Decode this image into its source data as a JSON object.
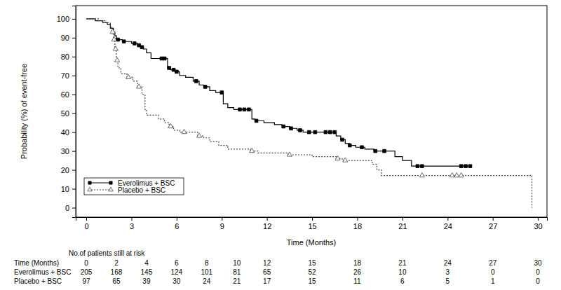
{
  "chart_data": {
    "type": "step",
    "x_label": "Time (Months)",
    "y_label": "Probability (%) of event-free",
    "xlim": [
      -0.7,
      30.6
    ],
    "xticks": [
      0,
      3,
      6,
      9,
      12,
      15,
      18,
      21,
      24,
      27,
      30
    ],
    "ylim": [
      -5,
      107
    ],
    "yticks": [
      0,
      10,
      20,
      30,
      40,
      50,
      60,
      70,
      80,
      90,
      100
    ],
    "grid": false,
    "legend": "lower left",
    "series": [
      {
        "name": "Everolimus + BSC",
        "color": "#000000",
        "line_style": "solid",
        "marker": "square",
        "x": [
          0,
          0.6,
          1.1,
          1.4,
          1.6,
          1.8,
          1.9,
          2.0,
          2.4,
          3.0,
          3.4,
          3.6,
          3.8,
          4.0,
          4.3,
          5.4,
          5.6,
          5.9,
          6.2,
          6.6,
          7.1,
          7.5,
          7.8,
          8.2,
          8.6,
          9.1,
          9.4,
          9.8,
          11.0,
          11.2,
          11.8,
          12.5,
          13.0,
          13.5,
          14.0,
          14.4,
          16.6,
          16.9,
          17.2,
          17.5,
          17.9,
          18.5,
          19.1,
          20.5,
          21.0,
          21.6,
          25.5
        ],
        "values": [
          100,
          99,
          98,
          97,
          95,
          93,
          91,
          89,
          88,
          87,
          86,
          85,
          84,
          82,
          79,
          74,
          73,
          72,
          70,
          69,
          67,
          65,
          64,
          62,
          61,
          55,
          53,
          52,
          47,
          46,
          45,
          44,
          43,
          42,
          41,
          40,
          38,
          36,
          34,
          33,
          32,
          31,
          30,
          27,
          25,
          22,
          22
        ],
        "censor_x": [
          2.1,
          2.5,
          3.2,
          3.5,
          3.7,
          5.0,
          5.2,
          5.5,
          5.8,
          6.0,
          7.3,
          7.9,
          9.0,
          10.2,
          10.5,
          10.8,
          11.3,
          13.1,
          13.6,
          14.2,
          14.8,
          15.2,
          15.9,
          16.2,
          16.5,
          17.0,
          17.5,
          18.3,
          19.2,
          19.8,
          22.0,
          22.3,
          24.9,
          25.2,
          25.5
        ],
        "censor_values": [
          89,
          88,
          87,
          86,
          85,
          79,
          79,
          74,
          73,
          72,
          67,
          64,
          61,
          52,
          52,
          52,
          46,
          43,
          42,
          41,
          40,
          40,
          40,
          40,
          40,
          36,
          33,
          32,
          30,
          30,
          22,
          22,
          22,
          22,
          22
        ]
      },
      {
        "name": "Placebo + BSC",
        "color": "#444444",
        "line_style": "dotted",
        "marker": "triangle-open",
        "x": [
          0,
          0.8,
          1.3,
          1.6,
          1.7,
          1.8,
          1.9,
          2.0,
          2.1,
          2.3,
          2.7,
          3.1,
          3.4,
          3.7,
          3.9,
          4.0,
          4.8,
          5.2,
          5.5,
          5.8,
          6.2,
          7.4,
          7.8,
          8.2,
          8.8,
          9.4,
          10.9,
          11.4,
          13.4,
          15.0,
          16.6,
          17.0,
          19.0,
          19.3,
          19.6,
          29.6,
          29.6
        ],
        "values": [
          100,
          99,
          98,
          96,
          93,
          89,
          84,
          78,
          74,
          71,
          69,
          67,
          64,
          60,
          52,
          49,
          47,
          45,
          43,
          41,
          40,
          38,
          37,
          35,
          33,
          31,
          30,
          29,
          28,
          27,
          26,
          25,
          23,
          20,
          17,
          17,
          0
        ],
        "censor_x": [
          1.75,
          1.85,
          1.95,
          2.05,
          2.8,
          3.5,
          5.6,
          6.5,
          7.5,
          11.0,
          13.5,
          16.7,
          17.2,
          22.3,
          24.3,
          24.6,
          24.9
        ],
        "censor_values": [
          93,
          89,
          84,
          78,
          69,
          64,
          43,
          40,
          38,
          30,
          28,
          26,
          25,
          17,
          17,
          17,
          17
        ]
      }
    ],
    "risk_table": {
      "title": "No.of patients still at risk",
      "header": "Time (Months)",
      "times": [
        0,
        2,
        4,
        6,
        8,
        10,
        12,
        15,
        18,
        21,
        24,
        27,
        30
      ],
      "rows": [
        {
          "name": "Everolimus + BSC",
          "values": [
            205,
            168,
            145,
            124,
            101,
            81,
            65,
            52,
            26,
            10,
            3,
            0,
            0
          ]
        },
        {
          "name": "Placebo + BSC",
          "values": [
            97,
            65,
            39,
            30,
            24,
            21,
            17,
            15,
            11,
            6,
            5,
            1,
            0
          ]
        }
      ]
    }
  }
}
